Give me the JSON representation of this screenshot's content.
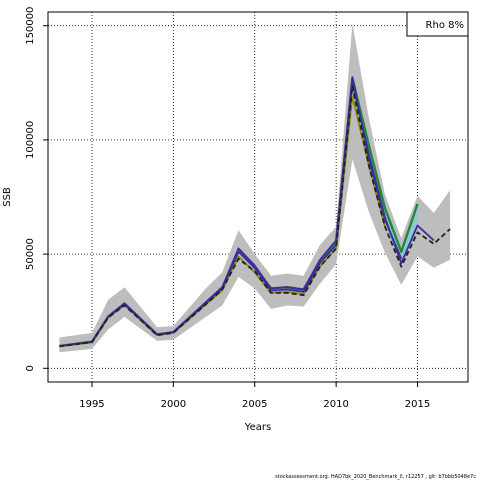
{
  "chart_data": {
    "type": "line",
    "xlabel": "Years",
    "ylabel": "SSB",
    "xlim": [
      1992.3,
      2018.1
    ],
    "ylim": [
      -6000,
      156000
    ],
    "x_ticks": [
      1995,
      2000,
      2005,
      2010,
      2015
    ],
    "y_ticks": [
      0,
      50000,
      100000,
      150000
    ],
    "grid": true,
    "legend": {
      "text": "Rho 8%",
      "position": "top-right"
    },
    "colors": {
      "band": "#bdbdbd",
      "retro_band": "#8ec7d4",
      "green": "#1f8a3c",
      "olive": "#8c8c10",
      "purple": "#3c2c9c",
      "black": "#222222"
    },
    "confidence_band": {
      "x": [
        1993,
        1995,
        1996,
        1997,
        1999,
        2000,
        2002,
        2003,
        2004,
        2005,
        2006,
        2007,
        2008,
        2009,
        2010,
        2011,
        2012,
        2013,
        2014,
        2015,
        2016,
        2017
      ],
      "upper": [
        13500,
        15500,
        30000,
        35500,
        18000,
        18500,
        35000,
        42000,
        60500,
        50000,
        40500,
        41500,
        40500,
        54000,
        62000,
        151000,
        110000,
        76000,
        57000,
        75500,
        68000,
        78000
      ],
      "lower": [
        7000,
        8500,
        17000,
        22500,
        12000,
        12500,
        22500,
        27500,
        40000,
        35000,
        26000,
        27500,
        27000,
        37000,
        45500,
        91500,
        68500,
        50500,
        36500,
        49000,
        44000,
        47500
      ]
    },
    "series": [
      {
        "x": [
          1993,
          1995,
          1996,
          1997,
          1999,
          2000,
          2002,
          2003,
          2004,
          2005,
          2006,
          2007,
          2008,
          2009,
          2010,
          2011,
          2012,
          2013,
          2014,
          2015
        ],
        "values": [
          9700,
          11700,
          22500,
          28000,
          14800,
          15800,
          28500,
          35000,
          51500,
          44000,
          35000,
          35500,
          34500,
          47000,
          55500,
          127000,
          98000,
          70000,
          51000,
          72000
        ]
      },
      {
        "x": [
          1993,
          1995,
          1996,
          1997,
          1999,
          2000,
          2002,
          2003,
          2004,
          2005,
          2006,
          2007,
          2008,
          2009,
          2010,
          2011,
          2012,
          2013,
          2014
        ],
        "values": [
          9800,
          11600,
          22800,
          28500,
          14900,
          15900,
          29000,
          35500,
          52500,
          45000,
          35000,
          35500,
          34500,
          47500,
          56000,
          127500,
          92000,
          65000,
          48000
        ]
      },
      {
        "x": [
          1993,
          1995,
          1996,
          1997,
          1999,
          2000,
          2002,
          2003,
          2004,
          2005,
          2006,
          2007,
          2008,
          2009,
          2010,
          2011,
          2012,
          2013
        ],
        "values": [
          9600,
          11400,
          22200,
          27700,
          14500,
          15500,
          28000,
          34000,
          49000,
          42000,
          33000,
          33500,
          32500,
          44500,
          52500,
          119000,
          89000,
          62000
        ]
      },
      {
        "x": [
          1993,
          1995,
          1996,
          1997,
          1999,
          2000,
          2002,
          2003,
          2004,
          2005,
          2006,
          2007,
          2008,
          2009,
          2010,
          2011,
          2012,
          2013,
          2014,
          2015,
          2016
        ],
        "values": [
          9700,
          11500,
          22500,
          28000,
          14700,
          15700,
          28500,
          35000,
          51000,
          44000,
          34000,
          34500,
          33500,
          46000,
          54000,
          125000,
          94000,
          66000,
          46000,
          62500,
          56000
        ]
      },
      {
        "x": [
          1993,
          1995,
          1996,
          1997,
          1999,
          2000,
          2002,
          2003,
          2004,
          2005,
          2006,
          2007,
          2008,
          2009,
          2010,
          2011,
          2012,
          2013,
          2014,
          2015,
          2016,
          2017
        ],
        "values": [
          9600,
          11400,
          22200,
          27600,
          14500,
          15500,
          28000,
          34500,
          48000,
          42500,
          33000,
          33000,
          32000,
          44500,
          52500,
          123500,
          89000,
          62000,
          44500,
          59500,
          54500,
          61000
        ]
      }
    ]
  },
  "footer": "stockassessment.org. HAD7bk_2020_Benchmark_ll, r12257 , git: b7bbb5048e7c"
}
